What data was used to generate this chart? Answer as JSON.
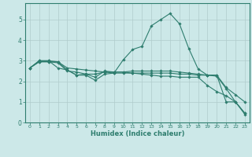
{
  "xlabel": "Humidex (Indice chaleur)",
  "ylabel": "",
  "bg_color": "#cce8e8",
  "grid_color": "#b0cccc",
  "line_color": "#2e7d6e",
  "xlim": [
    -0.5,
    23.5
  ],
  "ylim": [
    0,
    5.8
  ],
  "yticks": [
    0,
    1,
    2,
    3,
    4,
    5
  ],
  "xticks": [
    0,
    1,
    2,
    3,
    4,
    5,
    6,
    7,
    8,
    9,
    10,
    11,
    12,
    13,
    14,
    15,
    16,
    17,
    18,
    19,
    20,
    21,
    22,
    23
  ],
  "series": [
    {
      "x": [
        0,
        1,
        2,
        3,
        4,
        5,
        6,
        7,
        8,
        9,
        10,
        11,
        12,
        13,
        14,
        15,
        16,
        17,
        18,
        19,
        20,
        21,
        22,
        23
      ],
      "y": [
        2.65,
        3.0,
        3.0,
        2.95,
        2.55,
        2.3,
        2.3,
        2.05,
        2.35,
        2.4,
        3.05,
        3.55,
        3.7,
        4.7,
        5.0,
        5.3,
        4.8,
        3.6,
        2.6,
        2.3,
        2.3,
        1.0,
        1.0,
        0.4
      ]
    },
    {
      "x": [
        0,
        1,
        2,
        3,
        4,
        5,
        6,
        7,
        8,
        9,
        10,
        11,
        12,
        13,
        14,
        15,
        16,
        17,
        18,
        19,
        20,
        21,
        22,
        23
      ],
      "y": [
        2.65,
        2.95,
        2.95,
        2.95,
        2.65,
        2.6,
        2.55,
        2.5,
        2.45,
        2.4,
        2.4,
        2.4,
        2.4,
        2.4,
        2.4,
        2.4,
        2.35,
        2.35,
        2.3,
        2.3,
        2.3,
        1.7,
        1.35,
        1.0
      ]
    },
    {
      "x": [
        0,
        1,
        2,
        3,
        4,
        5,
        6,
        7,
        8,
        9,
        10,
        11,
        12,
        13,
        14,
        15,
        16,
        17,
        18,
        19,
        20,
        21,
        22,
        23
      ],
      "y": [
        2.65,
        2.95,
        2.95,
        2.9,
        2.5,
        2.45,
        2.35,
        2.2,
        2.5,
        2.45,
        2.45,
        2.4,
        2.35,
        2.3,
        2.25,
        2.25,
        2.2,
        2.2,
        2.2,
        1.8,
        1.5,
        1.3,
        1.0,
        0.45
      ]
    },
    {
      "x": [
        0,
        1,
        2,
        3,
        4,
        5,
        6,
        7,
        8,
        9,
        10,
        11,
        12,
        13,
        14,
        15,
        16,
        17,
        18,
        19,
        20,
        21,
        22,
        23
      ],
      "y": [
        2.65,
        3.0,
        3.0,
        2.65,
        2.55,
        2.3,
        2.35,
        2.35,
        2.45,
        2.45,
        2.45,
        2.5,
        2.5,
        2.5,
        2.5,
        2.5,
        2.45,
        2.4,
        2.35,
        2.3,
        2.25,
        1.65,
        1.0,
        0.45
      ]
    }
  ]
}
